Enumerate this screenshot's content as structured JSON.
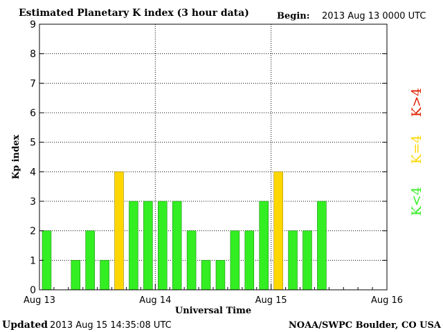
{
  "header": {
    "title": "Estimated Planetary K index (3 hour data)",
    "begin_label": "Begin:",
    "begin_value": "2013 Aug 13 0000 UTC"
  },
  "footer": {
    "updated_label": "Updated",
    "updated_value": "2013 Aug 15 14:35:08 UTC",
    "source": "NOAA/SWPC Boulder, CO USA"
  },
  "legend": {
    "high": "K>4",
    "equal": "K=4",
    "low": "K<4"
  },
  "colors": {
    "low": "#33ee22",
    "equal": "#ffd700",
    "high": "#dd2200",
    "low_stroke": "#1a8a10",
    "equal_stroke": "#a08800"
  },
  "chart_data": {
    "type": "bar",
    "title": "Estimated Planetary K index (3 hour data)",
    "xlabel": "Universal Time",
    "ylabel": "Kp index",
    "ylim": [
      0,
      9
    ],
    "yticks": [
      0,
      1,
      2,
      3,
      4,
      5,
      6,
      7,
      8,
      9
    ],
    "xticks": [
      "Aug 13",
      "Aug 14",
      "Aug 15",
      "Aug 16"
    ],
    "bins_per_day": 8,
    "grid": true,
    "values": [
      2,
      0,
      1,
      2,
      1,
      4,
      3,
      3,
      3,
      3,
      2,
      1,
      1,
      2,
      2,
      3,
      4,
      2,
      2,
      3
    ]
  }
}
